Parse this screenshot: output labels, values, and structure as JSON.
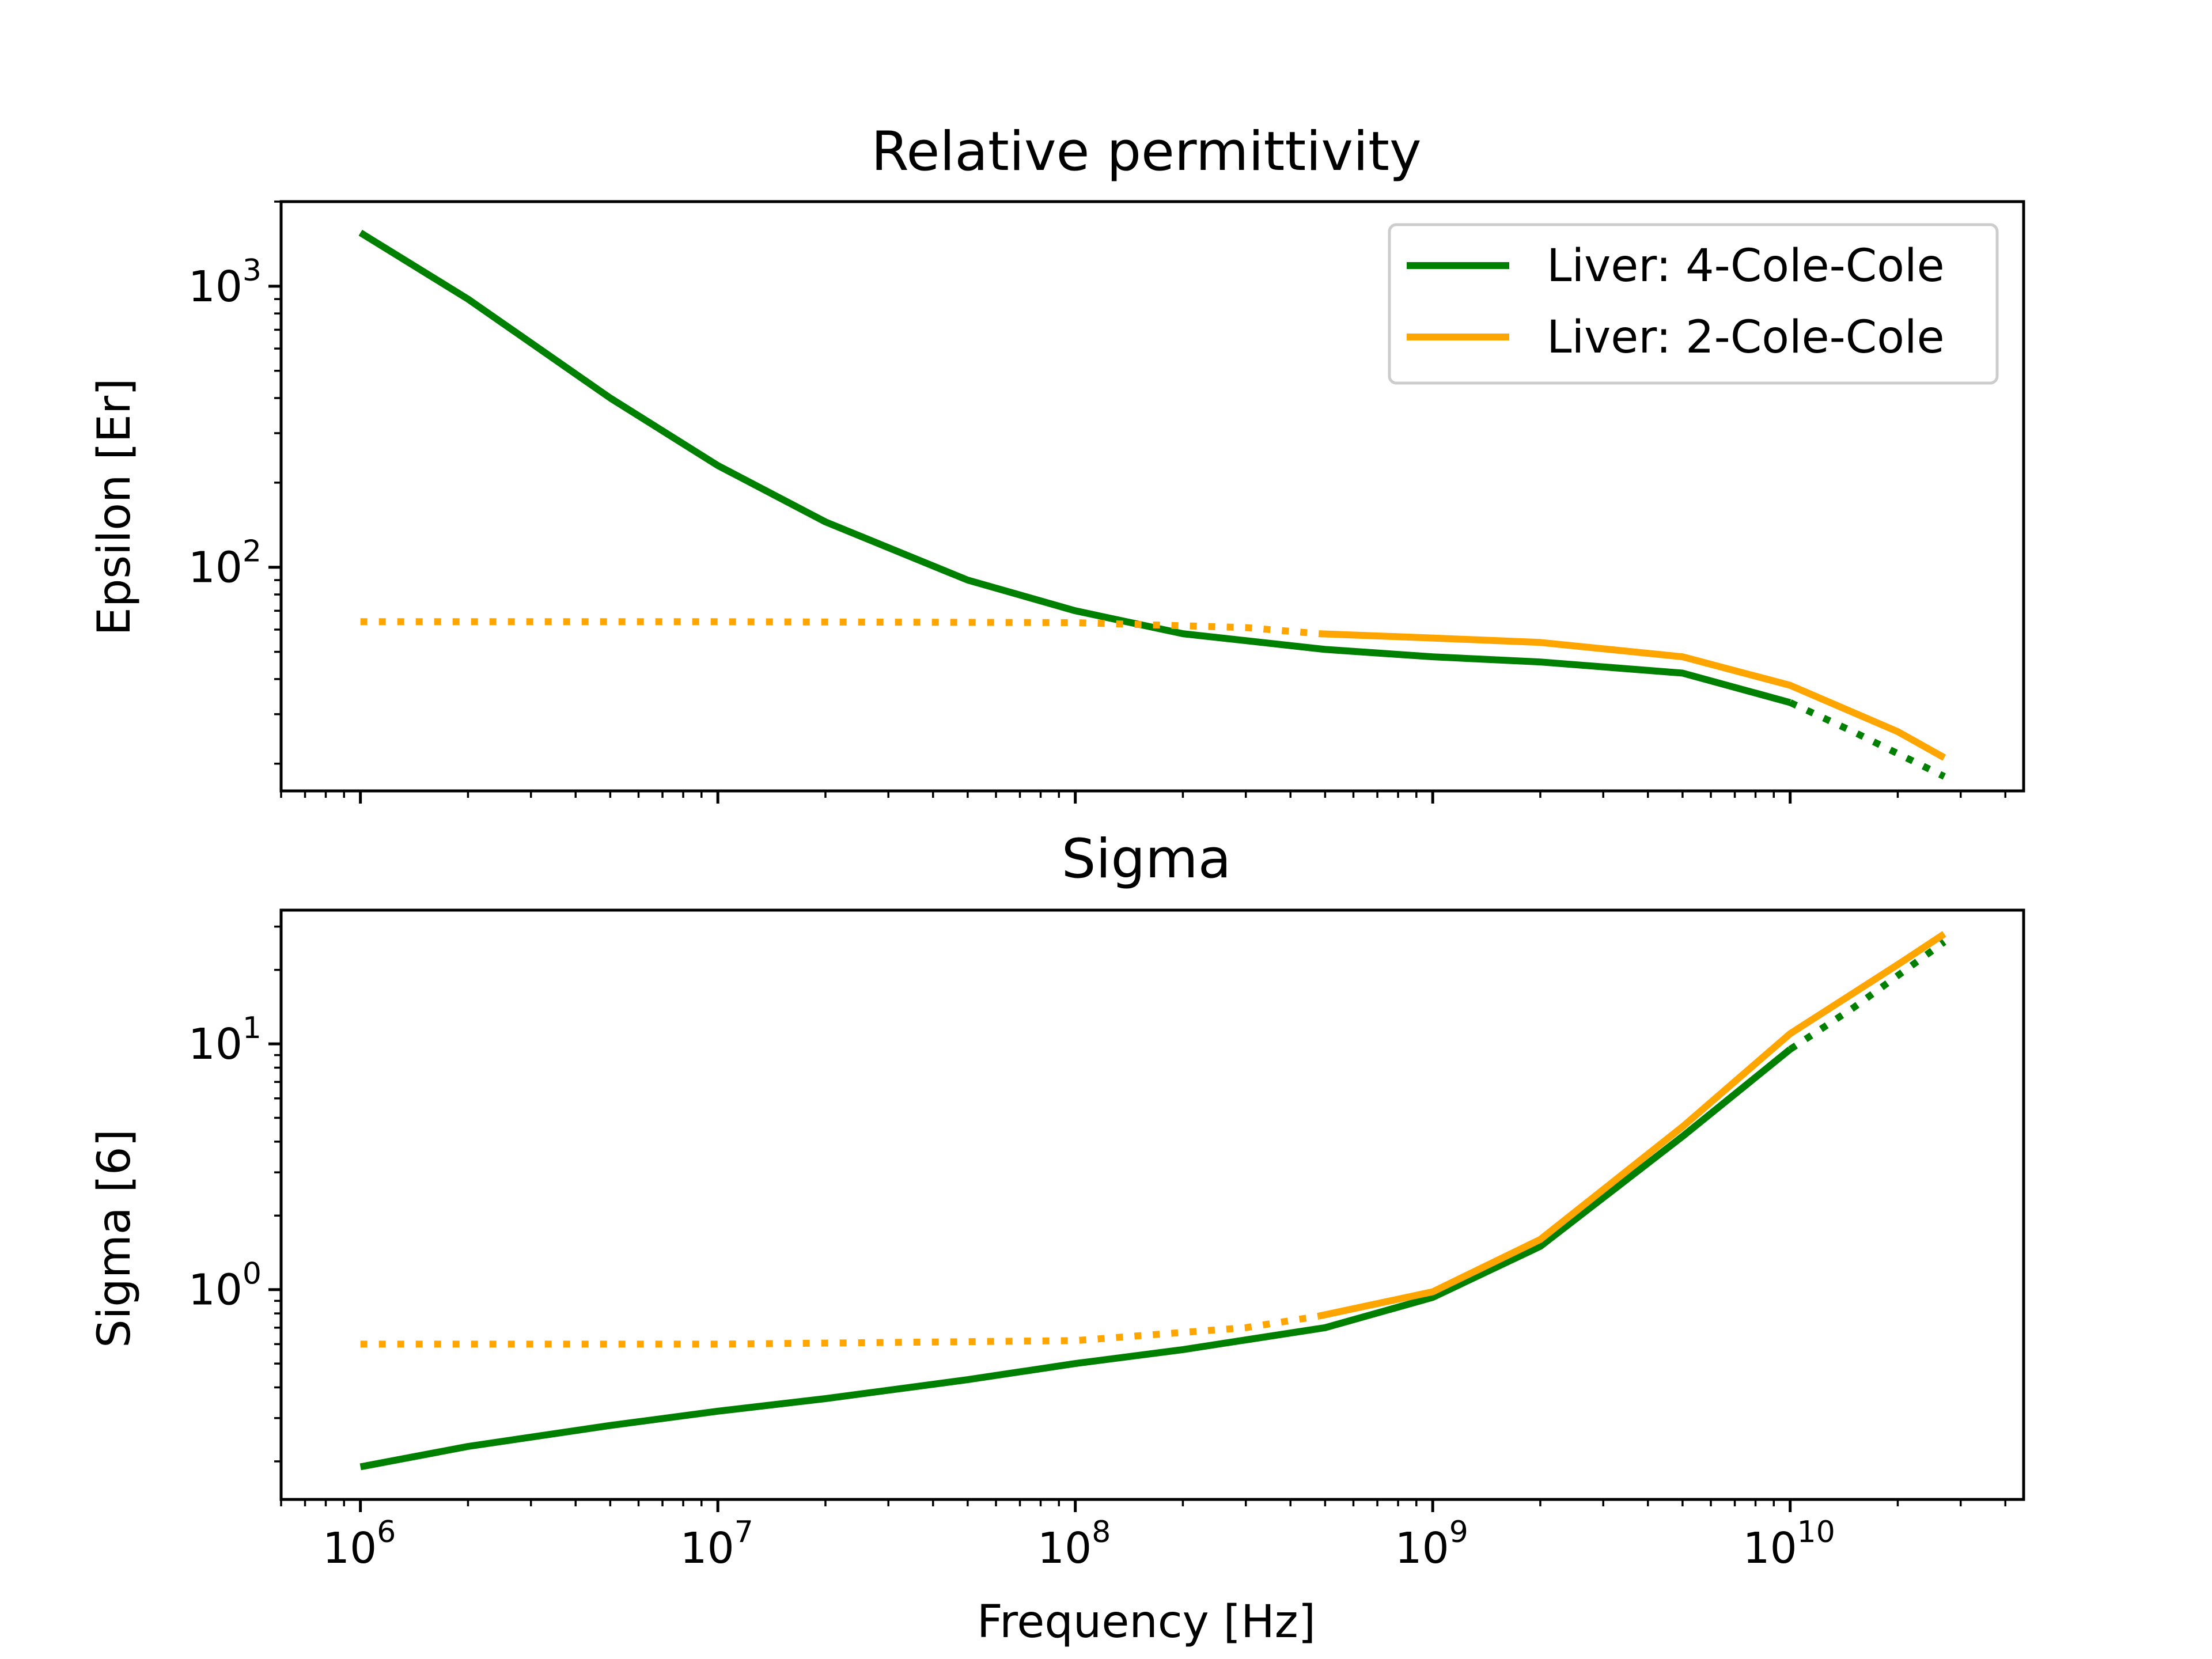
{
  "chart_data": [
    {
      "type": "line",
      "title": "Relative permittivity",
      "xlabel": "",
      "ylabel": "Epsilon [Er]",
      "xscale": "log",
      "yscale": "log",
      "xlim": [
        600000,
        45000000000
      ],
      "ylim": [
        16,
        2000
      ],
      "x_ticks": [
        {
          "base": "10",
          "exp": "6",
          "value": 1000000
        },
        {
          "base": "10",
          "exp": "7",
          "value": 10000000
        },
        {
          "base": "10",
          "exp": "8",
          "value": 100000000
        },
        {
          "base": "10",
          "exp": "9",
          "value": 1000000000
        },
        {
          "base": "10",
          "exp": "10",
          "value": 10000000000
        }
      ],
      "x_tick_labels_shown": false,
      "y_ticks": [
        {
          "base": "10",
          "exp": "2",
          "value": 100
        },
        {
          "base": "10",
          "exp": "3",
          "value": 1000
        }
      ],
      "legend": {
        "placement": "top-right",
        "entries": [
          "Liver: 4-Cole-Cole",
          "Liver: 2-Cole-Cole"
        ]
      },
      "grid": false,
      "series": [
        {
          "name": "Liver: 4-Cole-Cole",
          "color": "#008000",
          "segments": [
            {
              "style": "solid",
              "points": [
                [
                  1000000,
                  1550
                ],
                [
                  2000000,
                  900
                ],
                [
                  5000000,
                  400
                ],
                [
                  10000000,
                  230
                ],
                [
                  20000000,
                  145
                ],
                [
                  50000000,
                  90
                ],
                [
                  100000000,
                  70
                ],
                [
                  200000000,
                  58
                ],
                [
                  500000000,
                  51
                ],
                [
                  1000000000,
                  48
                ],
                [
                  2000000000,
                  46
                ],
                [
                  5000000000,
                  42
                ],
                [
                  10000000000,
                  33
                ]
              ]
            },
            {
              "style": "dotted",
              "points": [
                [
                  10000000000,
                  33
                ],
                [
                  15000000000,
                  26
                ],
                [
                  27000000000,
                  18
                ]
              ]
            }
          ]
        },
        {
          "name": "Liver: 2-Cole-Cole",
          "color": "#FFA500",
          "segments": [
            {
              "style": "dotted",
              "points": [
                [
                  1000000,
                  64
                ],
                [
                  10000000,
                  64
                ],
                [
                  100000000,
                  63.5
                ],
                [
                  300000000,
                  61
                ],
                [
                  480000000,
                  58
                ]
              ]
            },
            {
              "style": "solid",
              "points": [
                [
                  480000000,
                  58
                ],
                [
                  1000000000,
                  56
                ],
                [
                  2000000000,
                  54
                ],
                [
                  5000000000,
                  48
                ],
                [
                  10000000000,
                  38
                ],
                [
                  20000000000,
                  26
                ],
                [
                  27000000000,
                  21
                ]
              ]
            }
          ]
        }
      ]
    },
    {
      "type": "line",
      "title": "Sigma",
      "xlabel": "Frequency [Hz]",
      "ylabel": "Sigma [6]",
      "xscale": "log",
      "yscale": "log",
      "xlim": [
        600000,
        45000000000
      ],
      "ylim": [
        0.14,
        35
      ],
      "x_ticks": [
        {
          "base": "10",
          "exp": "6",
          "value": 1000000
        },
        {
          "base": "10",
          "exp": "7",
          "value": 10000000
        },
        {
          "base": "10",
          "exp": "8",
          "value": 100000000
        },
        {
          "base": "10",
          "exp": "9",
          "value": 1000000000
        },
        {
          "base": "10",
          "exp": "10",
          "value": 10000000000
        }
      ],
      "x_tick_labels_shown": true,
      "y_ticks": [
        {
          "base": "10",
          "exp": "0",
          "value": 1
        },
        {
          "base": "10",
          "exp": "1",
          "value": 10
        }
      ],
      "grid": false,
      "series": [
        {
          "name": "Liver: 4-Cole-Cole",
          "color": "#008000",
          "segments": [
            {
              "style": "solid",
              "points": [
                [
                  1000000,
                  0.19
                ],
                [
                  2000000,
                  0.23
                ],
                [
                  5000000,
                  0.28
                ],
                [
                  10000000,
                  0.32
                ],
                [
                  20000000,
                  0.36
                ],
                [
                  50000000,
                  0.43
                ],
                [
                  100000000,
                  0.5
                ],
                [
                  200000000,
                  0.57
                ],
                [
                  500000000,
                  0.7
                ],
                [
                  1000000000,
                  0.93
                ],
                [
                  2000000000,
                  1.5
                ],
                [
                  5000000000,
                  4.2
                ],
                [
                  10000000000,
                  9.5
                ]
              ]
            },
            {
              "style": "dotted",
              "points": [
                [
                  10000000000,
                  9.5
                ],
                [
                  15000000000,
                  14
                ],
                [
                  27000000000,
                  26
                ]
              ]
            }
          ]
        },
        {
          "name": "Liver: 2-Cole-Cole",
          "color": "#FFA500",
          "segments": [
            {
              "style": "dotted",
              "points": [
                [
                  1000000,
                  0.6
                ],
                [
                  10000000,
                  0.6
                ],
                [
                  100000000,
                  0.62
                ],
                [
                  300000000,
                  0.7
                ],
                [
                  480000000,
                  0.78
                ]
              ]
            },
            {
              "style": "solid",
              "points": [
                [
                  480000000,
                  0.78
                ],
                [
                  1000000000,
                  0.98
                ],
                [
                  2000000000,
                  1.6
                ],
                [
                  5000000000,
                  4.6
                ],
                [
                  10000000000,
                  11
                ],
                [
                  20000000000,
                  21
                ],
                [
                  27000000000,
                  28
                ]
              ]
            }
          ]
        }
      ]
    }
  ]
}
